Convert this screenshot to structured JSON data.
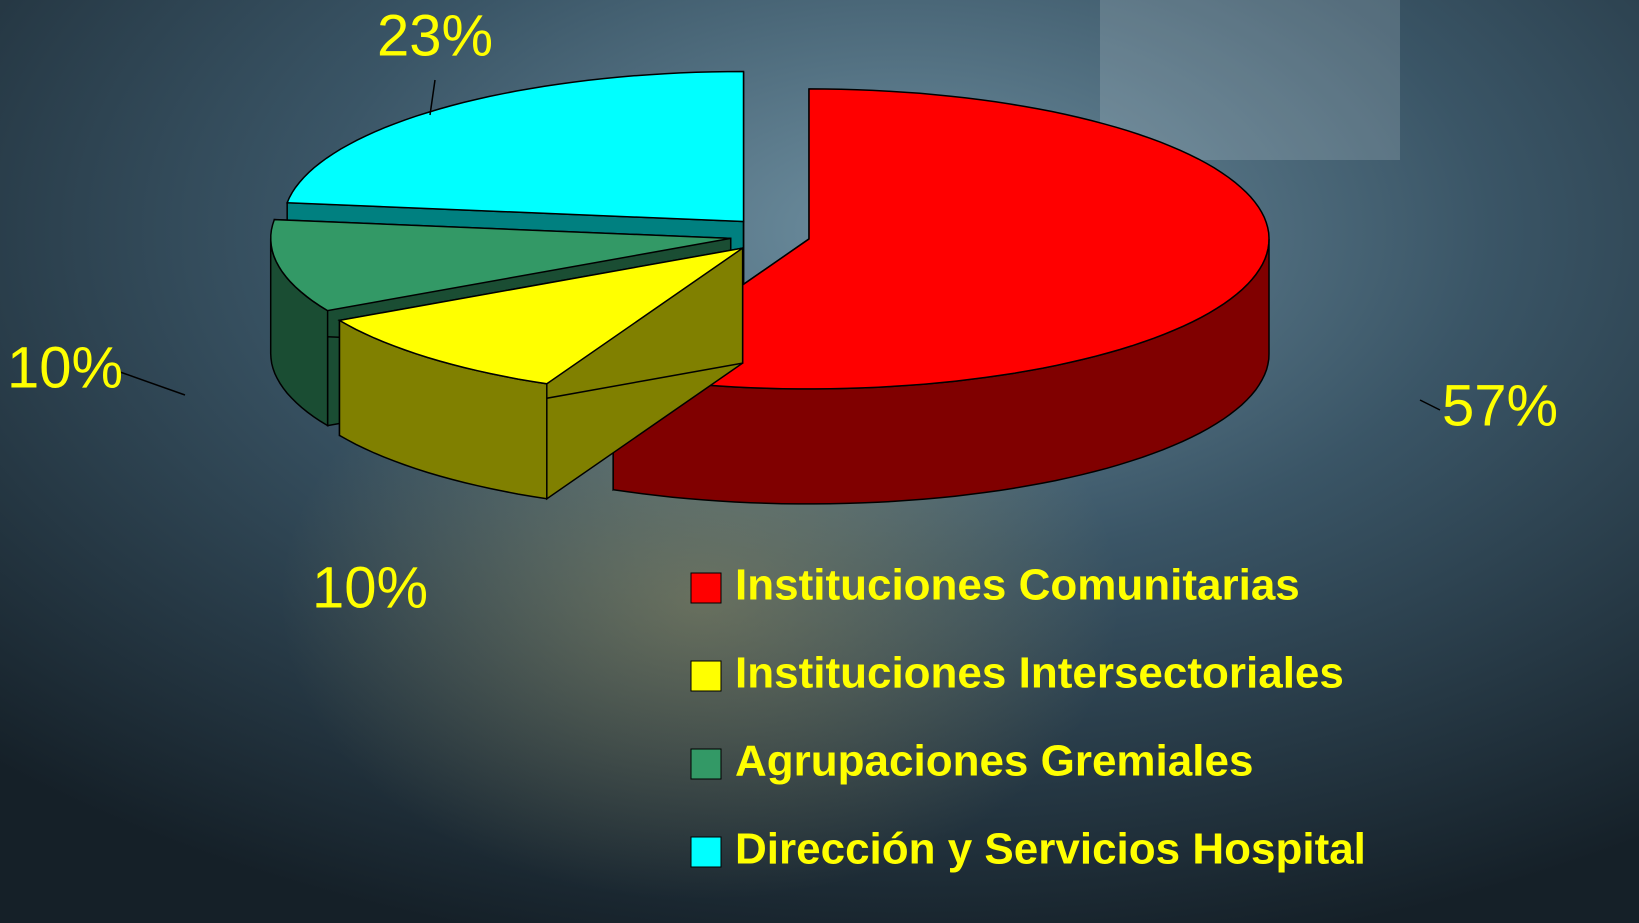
{
  "chart_data": {
    "type": "pie3d",
    "categories": [
      "Instituciones Comunitarias",
      "Instituciones Intersectoriales",
      "Agrupaciones Gremiales",
      "Dirección y Servicios Hospital"
    ],
    "values": [
      57,
      10,
      10,
      23
    ],
    "value_labels": [
      "57%",
      "10%",
      "10%",
      "23%"
    ],
    "colors": [
      "#ff0000",
      "#ffff00",
      "#339966",
      "#00ffff"
    ],
    "legend": "bottom-right"
  }
}
